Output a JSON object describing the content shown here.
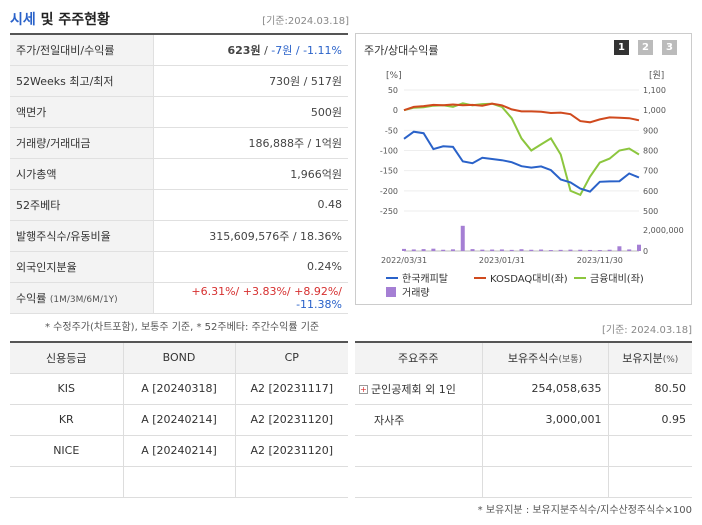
{
  "header": {
    "title_hl": "시세",
    "title_rest": " 및 주주현황",
    "base_date": "[기준:2024.03.18]"
  },
  "quote": {
    "rows": [
      {
        "label": "주가/전일대비/수익률"
      },
      {
        "label": "52Weeks 최고/최저",
        "value": "730원 / 517원"
      },
      {
        "label": "액면가",
        "value": "500원"
      },
      {
        "label": "거래량/거래대금",
        "value": "186,888주 / 1억원"
      },
      {
        "label": "시가총액",
        "value": "1,966억원"
      },
      {
        "label": "52주베타",
        "value": "0.48"
      },
      {
        "label": "발행주식수/유동비율",
        "value": "315,609,576주 / 18.36%"
      },
      {
        "label": "외국인지분율",
        "value": "0.24%"
      },
      {
        "label": "수익률",
        "sub": "(1M/3M/6M/1Y)"
      }
    ],
    "price": "623원",
    "change": "-7원",
    "rate": "-1.11%",
    "sep": " / ",
    "returns": [
      "+6.31%/",
      " +3.83%/",
      " +8.92%/",
      " -11.38%"
    ]
  },
  "note1": "* 수정주가(차트포함), 보통주 기준, * 52주베타: 주간수익률 기준",
  "chart": {
    "title": "주가/상대수익률",
    "pages": [
      "1",
      "2",
      "3"
    ],
    "left_unit": "[%]",
    "right_unit": "[원]",
    "left_ticks": [
      "50",
      "0",
      "-50",
      "-100",
      "-150",
      "-200",
      "-250"
    ],
    "right_ticks": [
      "1,100",
      "1,000",
      "900",
      "800",
      "700",
      "600",
      "500"
    ],
    "vol_ticks": [
      "2,000,000",
      "0"
    ],
    "x_ticks": [
      "2022/03/31",
      "2023/01/31",
      "2023/11/30"
    ],
    "legend": [
      "한국캐피탈",
      "KOSDAQ대비(좌)",
      "금융대비(좌)",
      "거래량"
    ],
    "colors": {
      "price": "#2a62c9",
      "kosdaq": "#d04a1e",
      "fin": "#8cc63e",
      "vol": "#a57fd4"
    }
  },
  "chart_data": {
    "type": "line",
    "x_range": [
      "2022/03/31",
      "2024/03/18"
    ],
    "series": [
      {
        "name": "한국캐피탈",
        "axis": "right",
        "values": [
          858,
          893,
          886,
          807,
          821,
          818,
          746,
          737,
          764,
          758,
          752,
          742,
          722,
          715,
          721,
          703,
          656,
          642,
          611,
          596,
          645,
          647,
          648,
          686,
          666
        ]
      },
      {
        "name": "KOSDAQ대비(좌)",
        "axis": "left",
        "values": [
          0,
          8,
          10,
          13,
          12,
          14,
          12,
          13,
          11,
          16,
          12,
          2,
          -3,
          -3,
          -4,
          -7,
          -6,
          -10,
          -27,
          -30,
          -23,
          -18,
          -19,
          -20,
          -25
        ]
      },
      {
        "name": "금융대비(좌)",
        "axis": "left",
        "values": [
          0,
          6,
          7,
          11,
          12,
          8,
          17,
          12,
          15,
          16,
          8,
          -20,
          -70,
          -100,
          -85,
          -70,
          -110,
          -200,
          -210,
          -165,
          -130,
          -120,
          -100,
          -95,
          -110
        ]
      },
      {
        "name": "거래량",
        "axis": "volume",
        "values": [
          200000,
          150000,
          180000,
          220000,
          120000,
          160000,
          2400000,
          180000,
          130000,
          140000,
          150000,
          110000,
          170000,
          120000,
          140000,
          90000,
          110000,
          130000,
          120000,
          100000,
          90000,
          120000,
          450000,
          150000,
          600000
        ]
      }
    ],
    "left_ylim": [
      -250,
      50
    ],
    "right_ylim": [
      500,
      1100
    ],
    "volume_ylim": [
      0,
      2000000
    ]
  },
  "base_date2": "[기준: 2024.03.18]",
  "credit": {
    "headers": [
      "신용등급",
      "BOND",
      "CP"
    ],
    "rows": [
      [
        "KIS",
        "A  [20240318]",
        "A2  [20231117]"
      ],
      [
        "KR",
        "A  [20240214]",
        "A2  [20231120]"
      ],
      [
        "NICE",
        "A  [20240214]",
        "A2  [20231120]"
      ],
      [
        "",
        "",
        ""
      ]
    ]
  },
  "holders": {
    "headers": [
      "주요주주",
      "보유주식수",
      "(보통)",
      "보유지분",
      "(%)"
    ],
    "rows": [
      {
        "name": "군인공제회 외 1인",
        "shares": "254,058,635",
        "pct": "80.50"
      },
      {
        "name": "자사주",
        "shares": "3,000,001",
        "pct": "0.95"
      },
      {
        "name": "",
        "shares": "",
        "pct": ""
      },
      {
        "name": "",
        "shares": "",
        "pct": ""
      }
    ]
  },
  "note2": "* 보유지분 : 보유지분주식수/지수산정주식수×100"
}
